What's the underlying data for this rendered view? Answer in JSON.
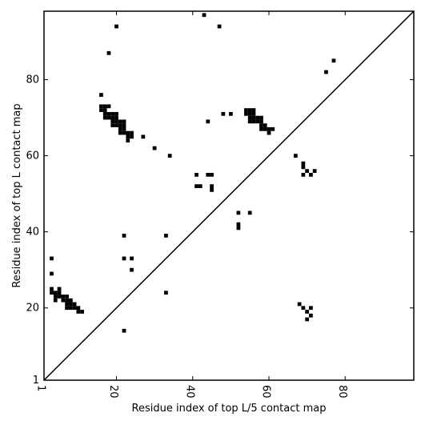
{
  "chart_data": {
    "type": "scatter",
    "xlabel": "Residue index of top L/5 contact map",
    "ylabel": "Residue index of top L contact map",
    "xlim": [
      1,
      98
    ],
    "ylim": [
      1,
      98
    ],
    "x_ticks": [
      1,
      20,
      40,
      60,
      80
    ],
    "y_ticks": [
      1,
      20,
      40,
      60,
      80
    ],
    "diagonal": true,
    "grid": false,
    "marker_color": "#000000",
    "series": [
      {
        "points": [
          [
            3,
            33
          ],
          [
            3,
            29
          ],
          [
            3,
            25
          ],
          [
            3,
            24
          ],
          [
            4,
            24
          ],
          [
            4,
            23
          ],
          [
            4,
            22
          ],
          [
            5,
            25
          ],
          [
            5,
            24
          ],
          [
            5,
            23
          ],
          [
            6,
            23
          ],
          [
            6,
            22
          ],
          [
            7,
            23
          ],
          [
            7,
            22
          ],
          [
            7,
            21
          ],
          [
            7,
            20
          ],
          [
            8,
            22
          ],
          [
            8,
            21
          ],
          [
            8,
            20
          ],
          [
            9,
            21
          ],
          [
            9,
            20
          ],
          [
            10,
            20
          ],
          [
            10,
            19
          ],
          [
            11,
            19
          ],
          [
            16,
            76
          ],
          [
            16,
            73
          ],
          [
            16,
            72
          ],
          [
            17,
            73
          ],
          [
            17,
            72
          ],
          [
            17,
            71
          ],
          [
            17,
            70
          ],
          [
            18,
            87
          ],
          [
            18,
            73
          ],
          [
            18,
            71
          ],
          [
            18,
            70
          ],
          [
            19,
            71
          ],
          [
            19,
            70
          ],
          [
            19,
            69
          ],
          [
            19,
            68
          ],
          [
            20,
            94
          ],
          [
            20,
            71
          ],
          [
            20,
            70
          ],
          [
            20,
            69
          ],
          [
            20,
            68
          ],
          [
            21,
            69
          ],
          [
            21,
            68
          ],
          [
            21,
            67
          ],
          [
            21,
            66
          ],
          [
            22,
            69
          ],
          [
            22,
            68
          ],
          [
            22,
            67
          ],
          [
            22,
            66
          ],
          [
            22,
            39
          ],
          [
            22,
            33
          ],
          [
            22,
            14
          ],
          [
            23,
            66
          ],
          [
            23,
            65
          ],
          [
            23,
            64
          ],
          [
            24,
            66
          ],
          [
            24,
            65
          ],
          [
            24,
            33
          ],
          [
            24,
            30
          ],
          [
            27,
            65
          ],
          [
            30,
            62
          ],
          [
            33,
            39
          ],
          [
            33,
            24
          ],
          [
            34,
            60
          ],
          [
            41,
            55
          ],
          [
            41,
            52
          ],
          [
            42,
            52
          ],
          [
            43,
            97
          ],
          [
            44,
            69
          ],
          [
            44,
            55
          ],
          [
            45,
            55
          ],
          [
            45,
            52
          ],
          [
            45,
            51
          ],
          [
            47,
            94
          ],
          [
            48,
            71
          ],
          [
            50,
            71
          ],
          [
            52,
            45
          ],
          [
            52,
            42
          ],
          [
            52,
            41
          ],
          [
            54,
            72
          ],
          [
            54,
            71
          ],
          [
            55,
            72
          ],
          [
            55,
            71
          ],
          [
            55,
            70
          ],
          [
            55,
            69
          ],
          [
            55,
            45
          ],
          [
            56,
            72
          ],
          [
            56,
            71
          ],
          [
            56,
            70
          ],
          [
            56,
            69
          ],
          [
            57,
            70
          ],
          [
            57,
            69
          ],
          [
            58,
            70
          ],
          [
            58,
            69
          ],
          [
            58,
            68
          ],
          [
            58,
            67
          ],
          [
            59,
            68
          ],
          [
            59,
            67
          ],
          [
            60,
            67
          ],
          [
            60,
            66
          ],
          [
            61,
            67
          ],
          [
            67,
            60
          ],
          [
            68,
            21
          ],
          [
            69,
            58
          ],
          [
            69,
            57
          ],
          [
            69,
            55
          ],
          [
            69,
            20
          ],
          [
            70,
            56
          ],
          [
            70,
            19
          ],
          [
            70,
            17
          ],
          [
            71,
            55
          ],
          [
            71,
            20
          ],
          [
            71,
            18
          ],
          [
            72,
            56
          ],
          [
            75,
            82
          ],
          [
            77,
            85
          ]
        ]
      }
    ]
  }
}
